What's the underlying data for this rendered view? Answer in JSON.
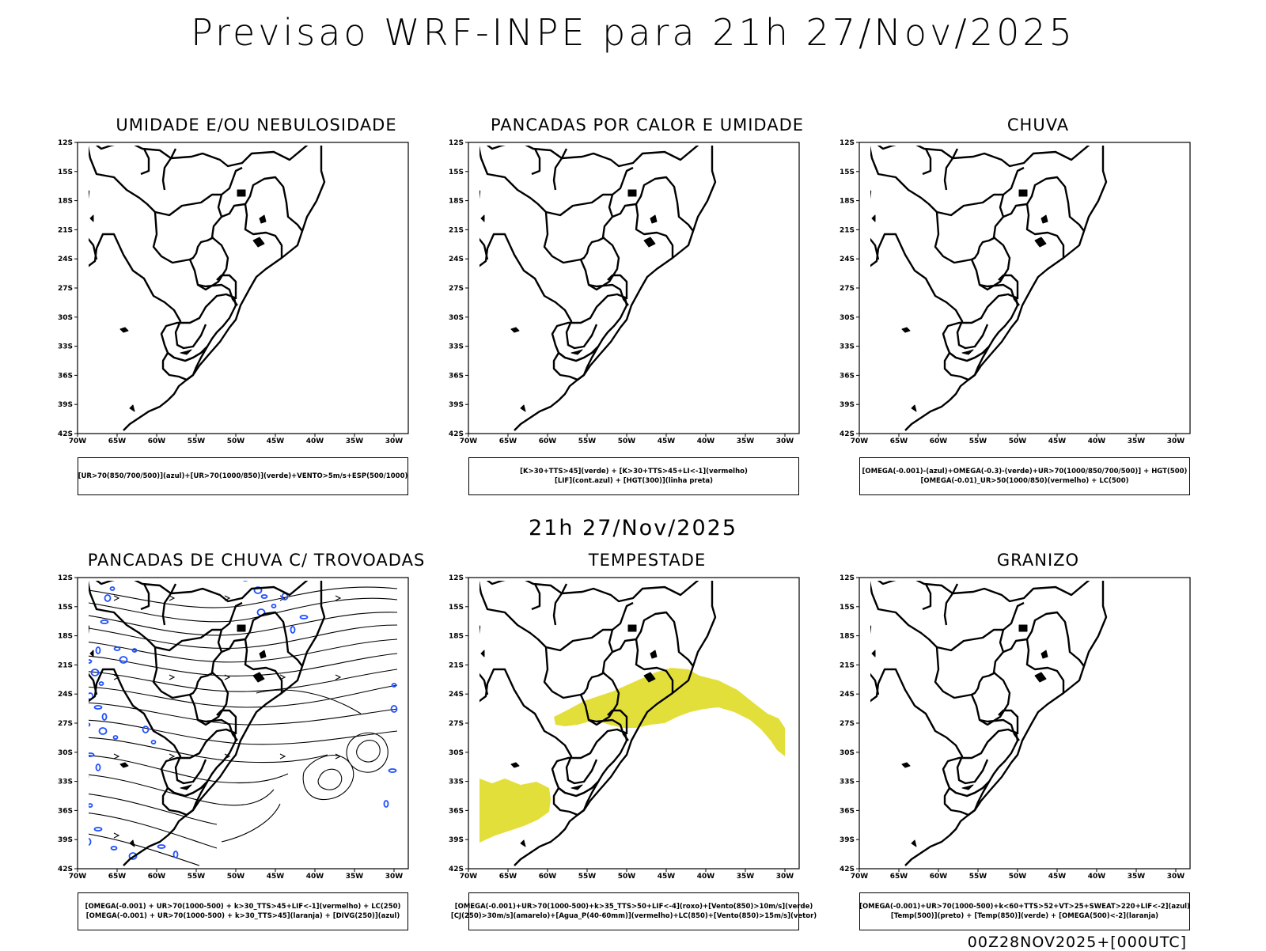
{
  "header": {
    "title": "Previsao WRF-INPE  para 21h 27/Nov/2025",
    "subtitle": "21h 27/Nov/2025",
    "footer": "00Z28NOV2025+[000UTC]"
  },
  "axes": {
    "lat_labels": [
      "12S",
      "15S",
      "18S",
      "21S",
      "24S",
      "27S",
      "30S",
      "33S",
      "36S",
      "39S",
      "42S"
    ],
    "lon_labels": [
      "70W",
      "65W",
      "60W",
      "55W",
      "50W",
      "45W",
      "40W",
      "35W",
      "30W"
    ]
  },
  "colors": {
    "coast": "#000000",
    "tempestade_fill": "#e3df3a",
    "trovoada_contour": "#2050ff",
    "stream": "#000000"
  },
  "panels": [
    {
      "title": "UMIDADE E/OU NEBULOSIDADE",
      "legend": [
        "[UR>70(850/700/500)](azul)+[UR>70(1000/850)](verde)+VENTO>5m/s+ESP(500/1000)"
      ]
    },
    {
      "title": "PANCADAS POR CALOR E UMIDADE",
      "legend": [
        "[K>30+TTS>45](verde) + [K>30+TTS>45+LI<-1](vermelho)",
        "[LIF](cont.azul) + [HGT(300)](linha preta)"
      ]
    },
    {
      "title": "CHUVA",
      "legend": [
        "[OMEGA(-0.001)-(azul)+OMEGA(-0.3)-(verde)+UR>70(1000/850/700/500)] + HGT(500)",
        "[OMEGA(-0.01)_UR>50(1000/850)(vermelho) + LC(500)"
      ]
    },
    {
      "title": "PANCADAS DE CHUVA C/ TROVOADAS",
      "legend": [
        "[OMEGA(-0.001) + UR>70(1000-500) + k>30_TTS>45+LIF<-1](vermelho) + LC(250)",
        "[OMEGA(-0.001) + UR>70(1000-500) + k>30_TTS>45](laranja) + [DIVG(250)](azul)"
      ]
    },
    {
      "title": "TEMPESTADE",
      "legend": [
        "[OMEGA(-0.001)+UR>70(1000-500)+k>35_TTS>50+LIF<-4](roxo)+[Vento(850)>10m/s](verde)",
        "[CJ(250)>30m/s](amarelo)+[Agua_P(40-60mm)](vermelho)+LC(850)+[Vento(850)>15m/s](vetor)"
      ]
    },
    {
      "title": "GRANIZO",
      "legend": [
        "[OMEGA(-0.001)+UR>70(1000-500)+k<60+TTS>52+VT>25+SWEAT>220+LIF<-2](azul)",
        "[Temp(500)](preto) + [Temp(850)](verde) + [OMEGA(500)<-2](laranja)"
      ]
    }
  ]
}
